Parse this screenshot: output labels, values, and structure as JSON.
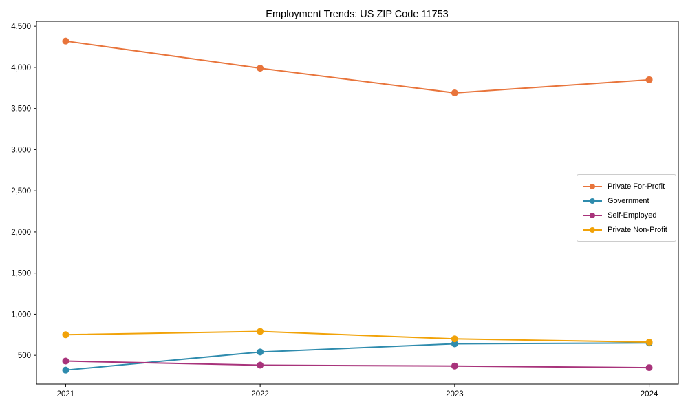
{
  "title": "Employment Trends: US ZIP Code 11753",
  "chart_data": {
    "type": "line",
    "title": "Employment Trends: US ZIP Code 11753",
    "xlabel": "",
    "ylabel": "",
    "x": [
      2021,
      2022,
      2023,
      2024
    ],
    "x_tick_labels": [
      "2021",
      "2022",
      "2023",
      "2024"
    ],
    "y_ticks": [
      500,
      1000,
      1500,
      2000,
      2500,
      3000,
      3500,
      4000,
      4500
    ],
    "y_tick_labels": [
      "500",
      "1,000",
      "1,500",
      "2,000",
      "2,500",
      "3,000",
      "3,500",
      "4,000",
      "4,500"
    ],
    "xlim": [
      2020.85,
      2024.15
    ],
    "ylim": [
      150,
      4560
    ],
    "grid": false,
    "legend_position": "center right",
    "series": [
      {
        "name": "Private For-Profit",
        "color": "#E8743B",
        "values": [
          4320,
          3990,
          3690,
          3850
        ]
      },
      {
        "name": "Government",
        "color": "#2E8BAD",
        "values": [
          320,
          540,
          640,
          650
        ]
      },
      {
        "name": "Self-Employed",
        "color": "#A8337B",
        "values": [
          430,
          380,
          370,
          350
        ]
      },
      {
        "name": "Private Non-Profit",
        "color": "#F1A208",
        "values": [
          750,
          790,
          700,
          660
        ]
      }
    ]
  }
}
